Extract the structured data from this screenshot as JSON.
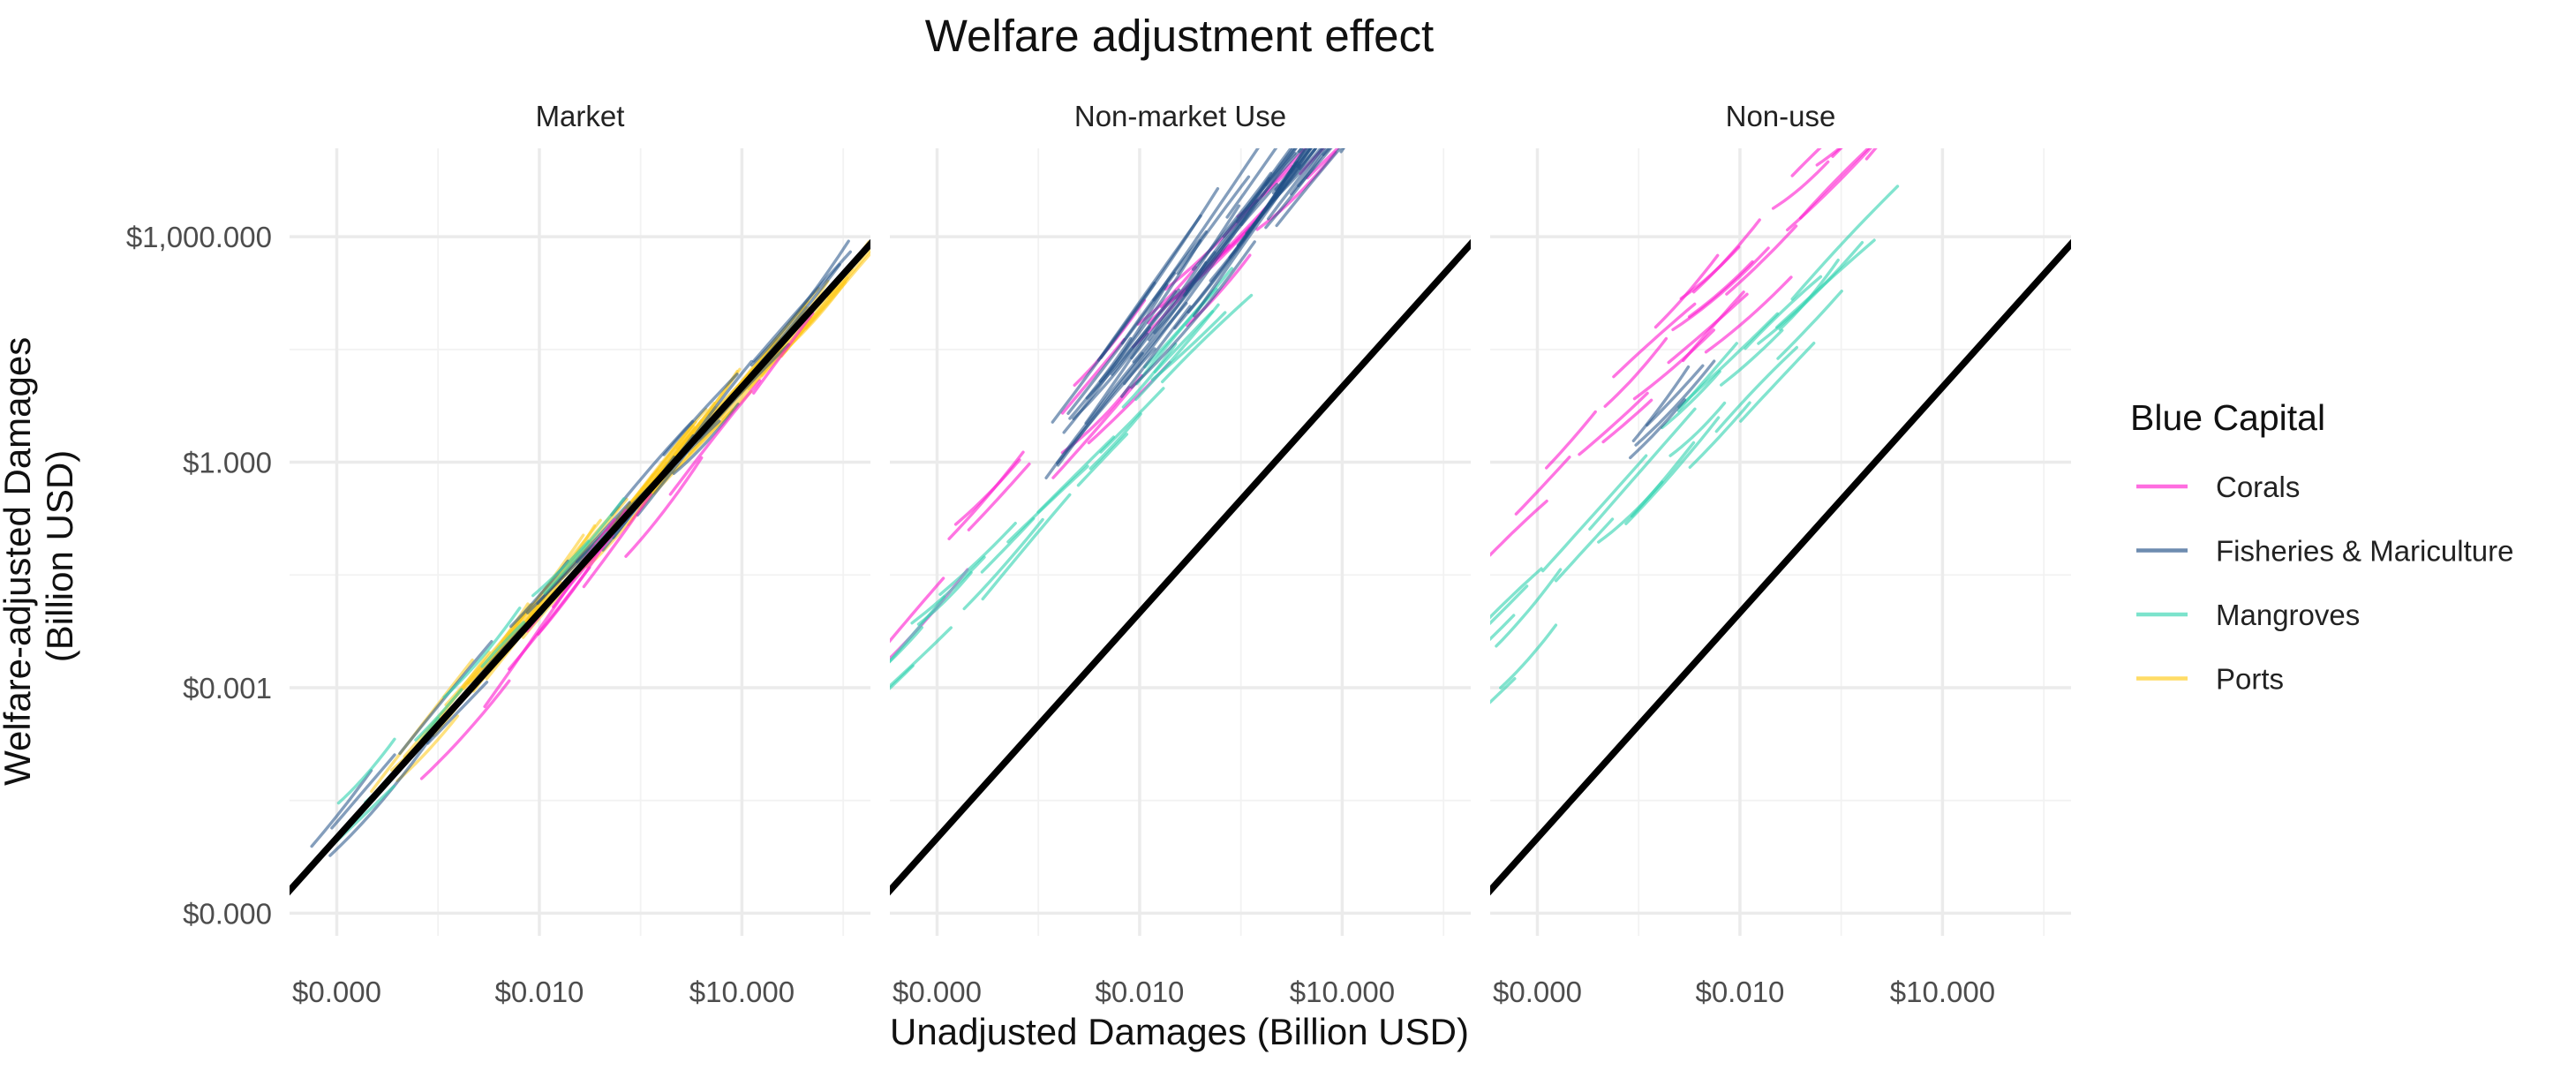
{
  "chart_data": {
    "type": "line",
    "title": "Welfare adjustment effect",
    "xlabel": "Unadjusted Damages (Billion USD)",
    "ylabel": "Welfare-adjusted Damages (Billion USD)",
    "x_scale": "log10",
    "y_scale": "log10",
    "xlim": [
      2e-06,
      800
    ],
    "ylim": [
      5e-07,
      15000
    ],
    "x_ticks": [
      {
        "value": 1e-05,
        "label": "$0.000"
      },
      {
        "value": 0.01,
        "label": "$0.010"
      },
      {
        "value": 10,
        "label": "$10.000"
      }
    ],
    "y_ticks": [
      {
        "value": 1e-06,
        "label": "$0.000"
      },
      {
        "value": 0.001,
        "label": "$0.001"
      },
      {
        "value": 1,
        "label": "$1.000"
      },
      {
        "value": 1000,
        "label": "$1,000.000"
      }
    ],
    "legend": {
      "title": "Blue Capital",
      "position": "right",
      "entries": [
        {
          "name": "Corals",
          "color": "#ff1fd0"
        },
        {
          "name": "Fisheries & Mariculture",
          "color": "#1f4e85"
        },
        {
          "name": "Mangroves",
          "color": "#35d4b1"
        },
        {
          "name": "Ports",
          "color": "#ffc914"
        }
      ]
    },
    "reference_line": "y = x",
    "grid": true,
    "panels": [
      {
        "name": "Market",
        "series": [
          {
            "name": "Ports",
            "count": 60,
            "log_x": [
              -4.8,
              2.4
            ],
            "log_y_offset": 0.0,
            "curve_len": [
              0.8,
              1.5
            ],
            "spread": 0.18,
            "segment_span": 0.6,
            "slope": 1.08
          },
          {
            "name": "Fisheries & Mariculture",
            "count": 22,
            "log_x": [
              -5.4,
              1.3
            ],
            "log_y_offset": 0.05,
            "curve_len": [
              0.8,
              1.6
            ],
            "spread": 0.22,
            "segment_span": 0.5,
            "slope": 1.05
          },
          {
            "name": "Corals",
            "count": 10,
            "log_x": [
              -4.6,
              1.4
            ],
            "log_y_offset": -0.3,
            "curve_len": [
              0.8,
              1.4
            ],
            "spread": 0.25,
            "segment_span": 0.6,
            "slope": 1.15
          },
          {
            "name": "Mangroves",
            "count": 10,
            "log_x": [
              -5.6,
              -1.0
            ],
            "log_y_offset": 0.2,
            "curve_len": [
              0.6,
              1.3
            ],
            "spread": 0.25,
            "segment_span": 0.4,
            "slope": 1.0
          }
        ]
      },
      {
        "name": "Non-market Use",
        "series": [
          {
            "name": "Corals",
            "count": 24,
            "log_x": [
              -6.0,
              0.5
            ],
            "log_y_offset": 3.5,
            "curve_len": [
              0.7,
              1.4
            ],
            "spread": 0.5,
            "segment_span": 0.8,
            "slope": 0.95
          },
          {
            "name": "Mangroves",
            "count": 22,
            "log_x": [
              -6.4,
              -1.5
            ],
            "log_y_offset": 2.85,
            "curve_len": [
              0.7,
              1.4
            ],
            "spread": 0.45,
            "segment_span": 0.7,
            "slope": 0.95
          },
          {
            "name": "Fisheries & Mariculture",
            "count": 75,
            "log_x": [
              -3.4,
              2.2
            ],
            "log_y_offset": 3.55,
            "curve_len": [
              0.8,
              2.0
            ],
            "spread": 0.45,
            "segment_span": 0.7,
            "slope": 1.2
          }
        ]
      },
      {
        "name": "Non-use",
        "series": [
          {
            "name": "Mangroves",
            "count": 26,
            "log_x": [
              -6.5,
              -1.0
            ],
            "log_y_offset": 3.1,
            "curve_len": [
              0.8,
              1.6
            ],
            "spread": 0.6,
            "segment_span": 0.8,
            "slope": 0.95
          },
          {
            "name": "Fisheries & Mariculture",
            "count": 4,
            "log_x": [
              -3.8,
              -2.6
            ],
            "log_y_offset": 3.6,
            "curve_len": [
              0.8,
              1.2
            ],
            "spread": 0.3,
            "segment_span": 0.4,
            "slope": 1.1
          },
          {
            "name": "Corals",
            "count": 34,
            "log_x": [
              -5.8,
              1.0
            ],
            "log_y_offset": 4.5,
            "curve_len": [
              0.7,
              1.5
            ],
            "spread": 0.55,
            "segment_span": 0.9,
            "slope": 0.9
          }
        ]
      }
    ]
  }
}
